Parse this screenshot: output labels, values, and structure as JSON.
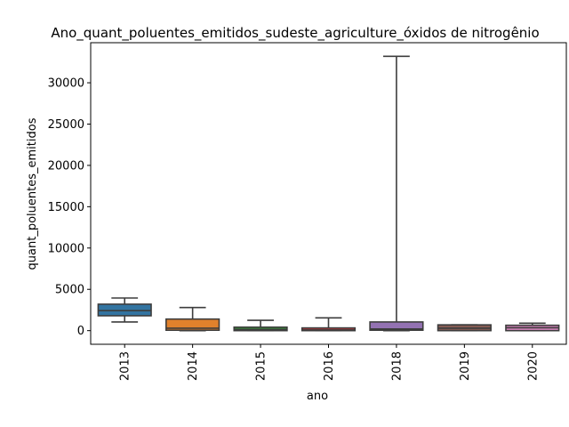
{
  "chart_data": {
    "type": "box",
    "title": "Ano_quant_poluentes_emitidos_sudeste_agriculture_óxidos de nitrogênio",
    "xlabel": "ano",
    "ylabel": "quant_poluentes_emitidos",
    "ylim": [
      -1650,
      34850
    ],
    "yticks": [
      0,
      5000,
      10000,
      15000,
      20000,
      25000,
      30000
    ],
    "ytick_labels": [
      "0",
      "5000",
      "10000",
      "15000",
      "20000",
      "25000",
      "30000"
    ],
    "grid": false,
    "legend": "none",
    "categories": [
      "2013",
      "2014",
      "2015",
      "2016",
      "2018",
      "2019",
      "2020"
    ],
    "boxes": [
      {
        "category": "2013",
        "whisker_low": 1050,
        "q1": 1800,
        "median": 2420,
        "q3": 3200,
        "whisker_high": 3950,
        "color": "#3274a1"
      },
      {
        "category": "2014",
        "whisker_low": 0,
        "q1": 50,
        "median": 300,
        "q3": 1400,
        "whisker_high": 2800,
        "color": "#e1812c"
      },
      {
        "category": "2015",
        "whisker_low": 0,
        "q1": 0,
        "median": 150,
        "q3": 420,
        "whisker_high": 1250,
        "color": "#3a923a"
      },
      {
        "category": "2016",
        "whisker_low": 0,
        "q1": 0,
        "median": 80,
        "q3": 330,
        "whisker_high": 1550,
        "color": "#c03d3e"
      },
      {
        "category": "2018",
        "whisker_low": 0,
        "q1": 50,
        "median": 200,
        "q3": 1050,
        "whisker_high": 33200,
        "color": "#9372b2"
      },
      {
        "category": "2019",
        "whisker_low": 0,
        "q1": 0,
        "median": 300,
        "q3": 700,
        "whisker_high": 700,
        "color": "#845b53"
      },
      {
        "category": "2020",
        "whisker_low": 0,
        "q1": 0,
        "median": 350,
        "q3": 650,
        "whisker_high": 900,
        "color": "#d684bd"
      }
    ]
  }
}
